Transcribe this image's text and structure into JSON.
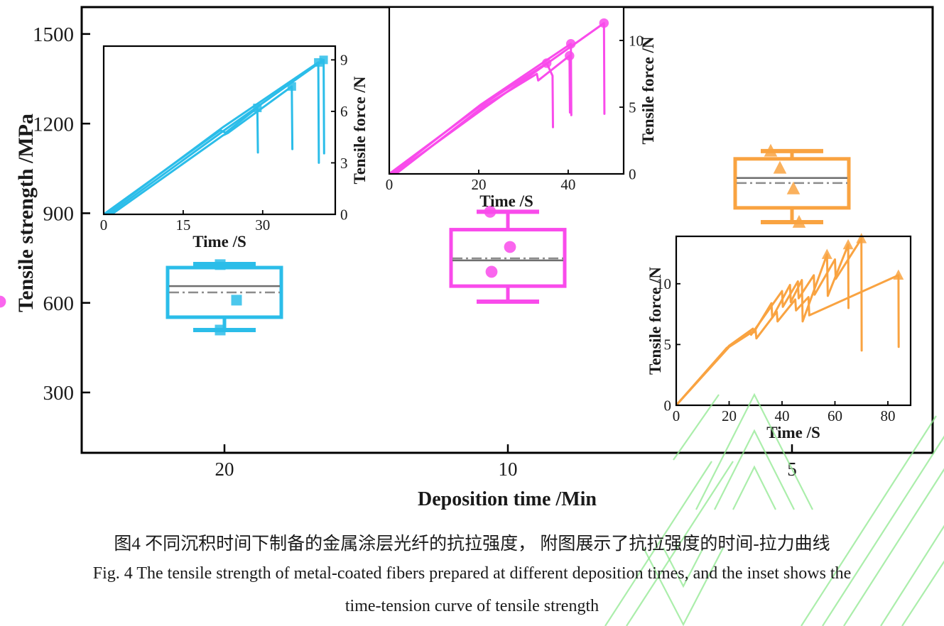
{
  "figure": {
    "caption_zh": "图4  不同沉积时间下制备的金属涂层光纤的抗拉强度， 附图展示了抗拉强度的时间-拉力曲线",
    "caption_en_line1": "Fig. 4 The tensile strength of metal-coated fibers prepared at different deposition times, and the inset shows the",
    "caption_en_line2": "time-tension curve of tensile strength"
  },
  "colors": {
    "series_20min": "#2BBDE9",
    "series_10min": "#F94BEB",
    "series_5min": "#F9A341",
    "median_line": "#6E6E6E",
    "mean_line": "#8C8C8C",
    "axis": "#000000",
    "watermark": "#8FE88F"
  },
  "chart_data": {
    "type": "bar",
    "subtype": "boxplot-with-line-insets",
    "title": "",
    "main": {
      "xlabel": "Deposition time /Min",
      "ylabel": "Tensile strength /MPa",
      "categories": [
        "20",
        "10",
        "5"
      ],
      "y_ticks": [
        300,
        600,
        900,
        1200,
        1500
      ],
      "ylim": [
        98,
        1590
      ],
      "grid": false,
      "boxplots": [
        {
          "category": "20",
          "color": "#2BBDE9",
          "marker": "square",
          "whisker_high": 730,
          "q3": 718,
          "median": 656,
          "mean": 635,
          "q1": 552,
          "whisker_low": 509,
          "points": [
            728,
            609,
            509
          ]
        },
        {
          "category": "10",
          "color": "#F94BEB",
          "marker": "circle",
          "whisker_high": 905,
          "q3": 845,
          "median": 742,
          "mean": 749,
          "q1": 656,
          "whisker_low": 604,
          "points": [
            905,
            787,
            704,
            604
          ]
        },
        {
          "category": "5",
          "color": "#F9A341",
          "marker": "triangle",
          "whisker_high": 1108,
          "q3": 1082,
          "median": 1018,
          "mean": 1001,
          "q1": 918,
          "whisker_low": 870,
          "points": [
            1108,
            1051,
            982,
            870
          ]
        }
      ]
    },
    "insets": [
      {
        "id": "20min",
        "type": "line",
        "color": "#2BBDE9",
        "marker": "square",
        "xlabel": "Time /S",
        "ylabel": "Tensile force /N",
        "y_axis_side": "right",
        "x_ticks": [
          0,
          15,
          30
        ],
        "y_ticks": [
          0,
          3,
          6,
          9
        ],
        "xlim": [
          0,
          43.7
        ],
        "ylim": [
          0,
          9.8
        ],
        "curves": [
          [
            [
              0,
              0
            ],
            [
              22,
              4.9
            ],
            [
              23,
              4.75
            ],
            [
              29,
              6.2
            ],
            [
              29.1,
              3.6
            ]
          ],
          [
            [
              1.5,
              0
            ],
            [
              22.5,
              4.6
            ],
            [
              23.5,
              4.75
            ],
            [
              35.5,
              7.45
            ],
            [
              35.6,
              3.8
            ]
          ],
          [
            [
              0.3,
              0
            ],
            [
              22.6,
              5.1
            ],
            [
              40.5,
              8.85
            ],
            [
              40.6,
              3.0
            ]
          ],
          [
            [
              0.9,
              0
            ],
            [
              23.2,
              5.0
            ],
            [
              41.5,
              9.0
            ],
            [
              41.6,
              3.55
            ]
          ]
        ],
        "markers": [
          [
            29,
            6.2
          ],
          [
            35.5,
            7.45
          ],
          [
            40.5,
            8.85
          ],
          [
            41.5,
            9.0
          ]
        ]
      },
      {
        "id": "10min",
        "type": "line",
        "color": "#F94BEB",
        "marker": "circle",
        "xlabel": "Time /S",
        "ylabel": "Tensile force /N",
        "y_axis_side": "right",
        "x_ticks": [
          0,
          20,
          40
        ],
        "y_ticks": [
          0,
          5,
          10
        ],
        "xlim": [
          0,
          52.4
        ],
        "ylim": [
          0,
          12.5
        ],
        "curves": [
          [
            [
              0,
              0
            ],
            [
              20,
              5.0
            ],
            [
              35.2,
              8.3
            ],
            [
              36.5,
              7.35
            ],
            [
              36.6,
              3.5
            ]
          ],
          [
            [
              1.5,
              0
            ],
            [
              21,
              5.05
            ],
            [
              33,
              7.5
            ],
            [
              33.3,
              7.0
            ],
            [
              40.3,
              8.85
            ],
            [
              40.4,
              4.6
            ]
          ],
          [
            [
              0.5,
              0
            ],
            [
              20.5,
              5.2
            ],
            [
              40.6,
              9.75
            ],
            [
              40.7,
              4.4
            ]
          ],
          [
            [
              1,
              0
            ],
            [
              21.5,
              5.0
            ],
            [
              48,
              11.3
            ],
            [
              48.1,
              4.5
            ]
          ]
        ],
        "markers": [
          [
            35.2,
            8.3
          ],
          [
            40.3,
            8.85
          ],
          [
            40.6,
            9.75
          ],
          [
            48,
            11.3
          ]
        ]
      },
      {
        "id": "5min",
        "type": "line",
        "color": "#F9A341",
        "marker": "triangle",
        "xlabel": "Time /S",
        "ylabel": "Tensile force /N",
        "y_axis_side": "left",
        "x_ticks": [
          0,
          20,
          40,
          60,
          80
        ],
        "y_ticks": [
          0,
          5,
          10
        ],
        "xlim": [
          0,
          88.6
        ],
        "ylim": [
          0,
          13.9
        ],
        "curves": [
          [
            [
              0,
              0
            ],
            [
              20,
              4.9
            ],
            [
              29,
              6.3
            ],
            [
              29.3,
              6.0
            ],
            [
              36,
              8.4
            ],
            [
              36.3,
              7.2
            ],
            [
              43,
              9.9
            ],
            [
              43.3,
              8.5
            ],
            [
              47.5,
              10.3
            ],
            [
              47.8,
              6.9
            ],
            [
              57,
              12.4
            ],
            [
              57.3,
              9.0
            ],
            [
              65,
              13.2
            ],
            [
              65.1,
              8.0
            ]
          ],
          [
            [
              0,
              0
            ],
            [
              19,
              4.7
            ],
            [
              28,
              6.1
            ],
            [
              28.3,
              5.8
            ],
            [
              40,
              9.4
            ],
            [
              40.3,
              8.1
            ],
            [
              46,
              10.2
            ],
            [
              46.3,
              8.8
            ],
            [
              52,
              10.7
            ],
            [
              52.3,
              9.1
            ],
            [
              60,
              12.0
            ],
            [
              60.3,
              10.4
            ],
            [
              70,
              13.7
            ],
            [
              70.1,
              4.5
            ]
          ],
          [
            [
              0,
              0
            ],
            [
              20,
              4.8
            ],
            [
              30,
              6.2
            ],
            [
              30.3,
              5.5
            ],
            [
              38,
              7.7
            ],
            [
              38.3,
              6.9
            ],
            [
              45,
              8.7
            ],
            [
              45.3,
              7.8
            ],
            [
              50,
              8.9
            ],
            [
              50.3,
              7.4
            ],
            [
              84,
              10.7
            ],
            [
              84.1,
              4.8
            ]
          ]
        ],
        "markers": [
          [
            57,
            12.4
          ],
          [
            65,
            13.2
          ],
          [
            70,
            13.7
          ],
          [
            84,
            10.7
          ]
        ]
      }
    ]
  }
}
